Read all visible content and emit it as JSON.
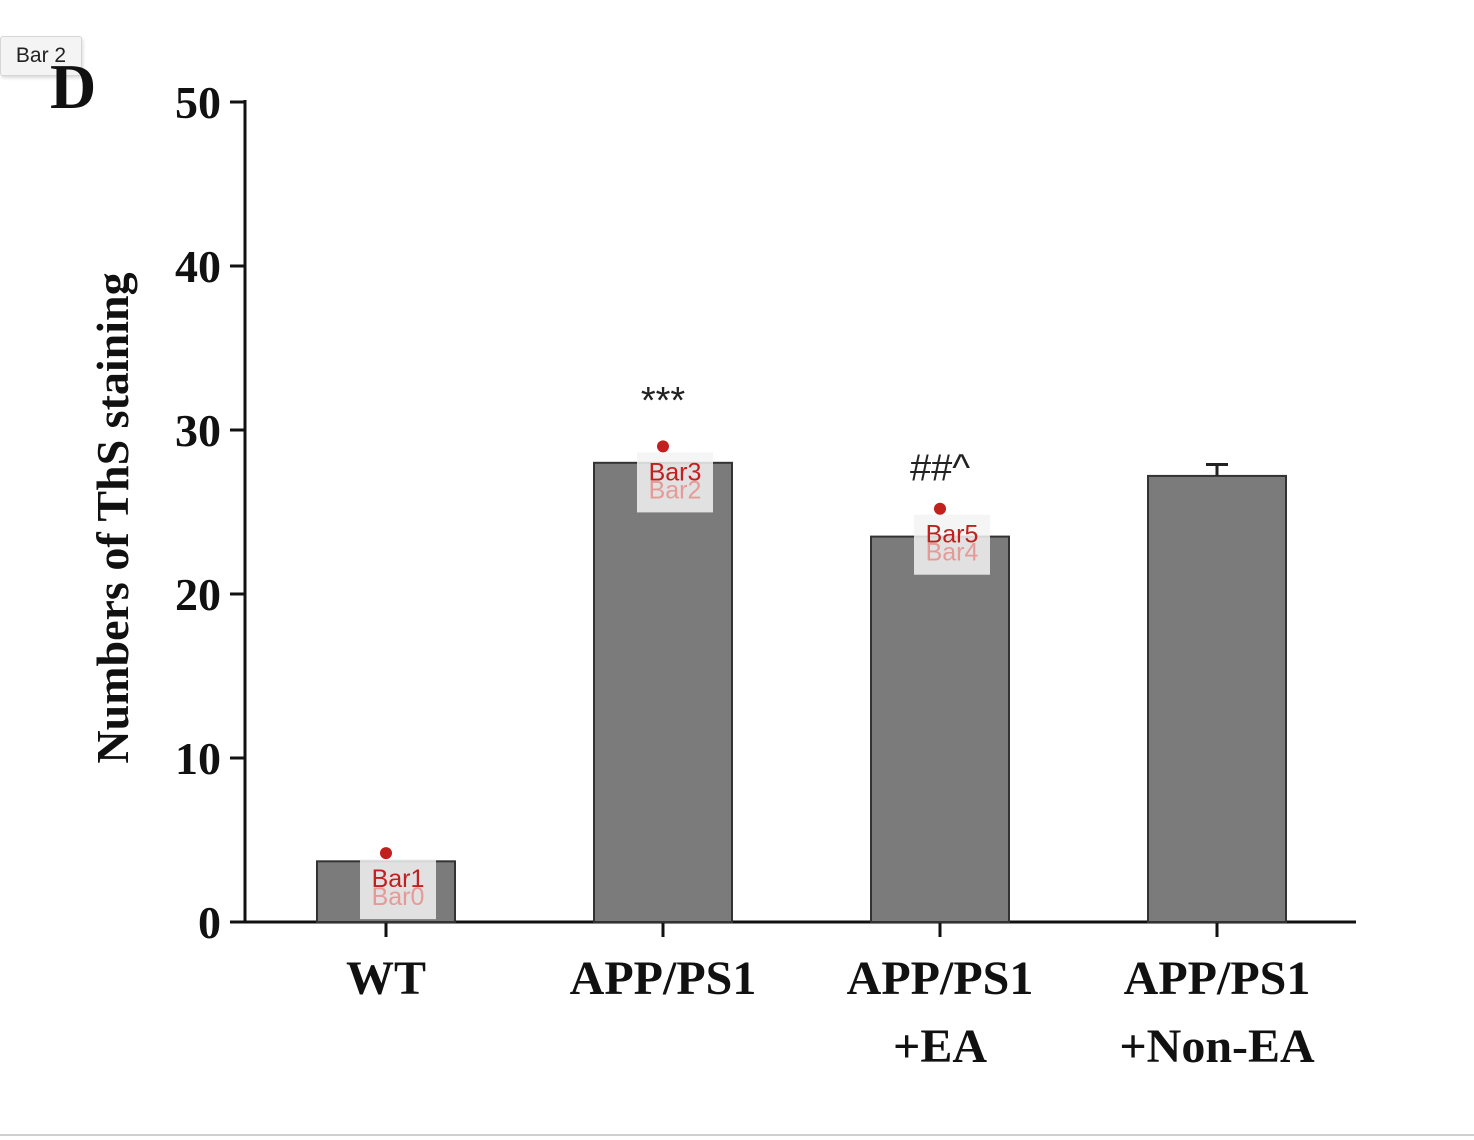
{
  "tooltip": {
    "label": "Bar 2"
  },
  "chart_data": {
    "type": "bar",
    "panel_label": "D",
    "ylabel": "Numbers of ThS staining",
    "xlabel": "",
    "ylim": [
      0,
      50
    ],
    "yticks": [
      0,
      10,
      20,
      30,
      40,
      50
    ],
    "categories": [
      [
        "WT"
      ],
      [
        "APP/PS1"
      ],
      [
        "APP/PS1",
        "+EA"
      ],
      [
        "APP/PS1",
        "+Non-EA"
      ]
    ],
    "values": [
      3.7,
      28.0,
      23.5,
      27.2
    ],
    "errors": [
      0.0,
      0.0,
      0.0,
      0.7
    ],
    "significance": [
      "",
      "***",
      "##^",
      ""
    ],
    "bar_color": "#7b7b7b",
    "grid": false,
    "markers": [
      {
        "label": "Bar1",
        "behind": "Bar0",
        "value": 4.2,
        "bar_index": 0
      },
      {
        "label": "Bar3",
        "behind": "Bar2",
        "value": 29.0,
        "bar_index": 1
      },
      {
        "label": "Bar5",
        "behind": "Bar4",
        "value": 25.2,
        "bar_index": 2
      }
    ],
    "marker_color": "#c0201e"
  }
}
